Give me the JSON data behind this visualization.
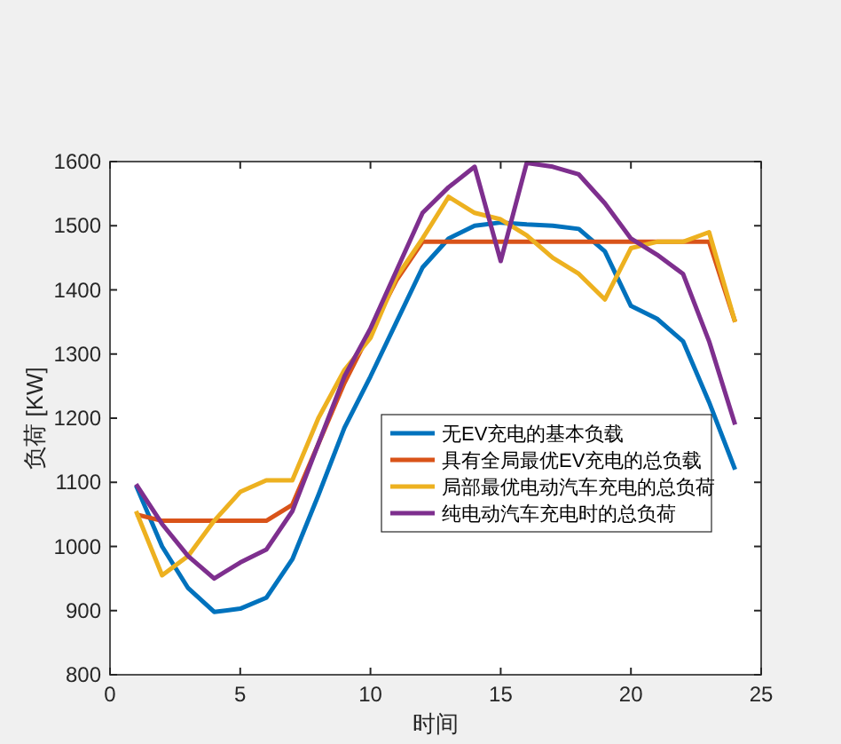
{
  "chart_data": {
    "type": "line",
    "xlabel": "时间",
    "ylabel": "负荷 [KW]",
    "x": [
      1,
      2,
      3,
      4,
      5,
      6,
      7,
      8,
      9,
      10,
      11,
      12,
      13,
      14,
      15,
      16,
      17,
      18,
      19,
      20,
      21,
      22,
      23,
      24
    ],
    "xlim": [
      0,
      25
    ],
    "xticks": [
      0,
      5,
      10,
      15,
      20,
      25
    ],
    "ylim": [
      800,
      1600
    ],
    "yticks": [
      800,
      900,
      1000,
      1100,
      1200,
      1300,
      1400,
      1500,
      1600
    ],
    "grid": false,
    "legend": "right",
    "marker": "none",
    "line_style": "solid",
    "series": [
      {
        "name": "无EV充电的基本负载",
        "color": "#0072bd",
        "values": [
          1095,
          1000,
          935,
          898,
          903,
          920,
          980,
          1080,
          1185,
          1265,
          1350,
          1435,
          1480,
          1500,
          1505,
          1502,
          1500,
          1495,
          1460,
          1375,
          1355,
          1320,
          1225,
          1120
        ]
      },
      {
        "name": "具有全局最优EV充电的总负载",
        "color": "#d95319",
        "values": [
          1050,
          1040,
          1040,
          1040,
          1040,
          1040,
          1065,
          1160,
          1255,
          1335,
          1415,
          1475,
          1475,
          1475,
          1475,
          1475,
          1475,
          1475,
          1475,
          1475,
          1475,
          1475,
          1475,
          1350
        ]
      },
      {
        "name": "局部最优电动汽车充电的总负荷",
        "color": "#edb120",
        "values": [
          1055,
          955,
          985,
          1040,
          1085,
          1103,
          1103,
          1200,
          1275,
          1325,
          1420,
          1480,
          1545,
          1520,
          1510,
          1485,
          1450,
          1425,
          1385,
          1465,
          1475,
          1475,
          1490,
          1350
        ]
      },
      {
        "name": "纯电动汽车充电时的总负荷",
        "color": "#7e2f8e",
        "values": [
          1097,
          1035,
          985,
          950,
          975,
          995,
          1055,
          1160,
          1265,
          1340,
          1430,
          1520,
          1560,
          1592,
          1445,
          1598,
          1592,
          1580,
          1535,
          1480,
          1455,
          1425,
          1320,
          1190
        ]
      }
    ]
  }
}
